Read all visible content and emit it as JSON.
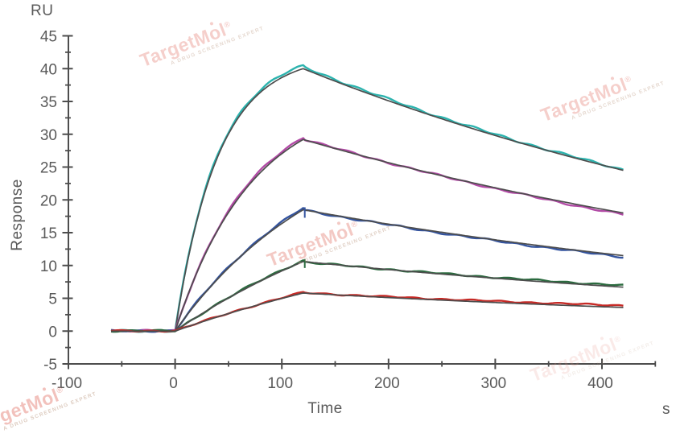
{
  "labels": {
    "y_unit": "RU",
    "y_axis": "Response",
    "x_axis": "Time",
    "x_unit": "s"
  },
  "watermark": {
    "brand_pre": "TargetM",
    "brand_o": "o",
    "brand_post": "l",
    "registered": "®",
    "tagline": "A DRUG SCREENING EXPERT"
  },
  "chart_data": {
    "type": "line",
    "subtype": "spr-sensorgram-with-fit",
    "title": "",
    "xlabel": "Time (s)",
    "ylabel": "Response (RU)",
    "xlim": [
      -100,
      450
    ],
    "ylim": [
      -5,
      45
    ],
    "x_ticks_major": [
      -100,
      0,
      100,
      200,
      300,
      400
    ],
    "x_ticks_minor": [
      -50,
      50,
      150,
      250,
      350,
      450
    ],
    "y_ticks_major": [
      45,
      40,
      35,
      30,
      25,
      20,
      15,
      10,
      5,
      0,
      -5
    ],
    "y_ticks_minor": [
      42.5,
      37.5,
      32.5,
      27.5,
      22.5,
      17.5,
      12.5,
      7.5,
      2.5,
      -2.5
    ],
    "grid": false,
    "legend": "none",
    "background": "#ffffff",
    "axis_color": "#4d4d4d",
    "text_color": "#5a5a5a",
    "fit_color": "#4d4d4d",
    "phases": {
      "baseline_start_s": -60,
      "association_start_s": 0,
      "association_end_s": 120,
      "dissociation_end_s": 420
    },
    "samples_t": [
      0,
      30,
      60,
      90,
      120,
      180,
      240,
      300,
      360,
      420
    ],
    "series": [
      {
        "name": "curve-1-highest-conc",
        "color_name": "cyan",
        "color": "#2cb3ae",
        "peak_ru": 40.0,
        "end_ru": 24.5,
        "k_assoc": 0.025,
        "noise": 0.12,
        "delta": [
          0.4,
          0.3,
          0.1
        ],
        "spike_len": 0,
        "samples_ru": [
          0,
          22.2,
          32.7,
          37.7,
          40.0,
          36.3,
          32.9,
          29.8,
          27.0,
          24.5
        ]
      },
      {
        "name": "curve-2",
        "color_name": "magenta",
        "color": "#b24ba6",
        "peak_ru": 29.2,
        "end_ru": 18.0,
        "k_assoc": 0.014,
        "noise": 0.1,
        "delta": [
          0.35,
          0.1,
          -0.25
        ],
        "spike_len": 0,
        "samples_ru": [
          0,
          12.3,
          20.4,
          25.7,
          29.2,
          26.5,
          24.1,
          21.9,
          19.8,
          18.0
        ]
      },
      {
        "name": "curve-3",
        "color_name": "blue",
        "color": "#34549f",
        "peak_ru": 18.5,
        "end_ru": 11.5,
        "k_assoc": 0.007,
        "noise": 0.1,
        "delta": [
          0.25,
          -0.05,
          -0.2
        ],
        "spike_len": 10,
        "samples_ru": [
          0,
          6.2,
          11.2,
          15.2,
          18.5,
          16.8,
          15.3,
          13.9,
          12.6,
          11.5
        ]
      },
      {
        "name": "curve-4",
        "color_name": "green",
        "color": "#2b6b3f",
        "peak_ru": 10.6,
        "end_ru": 6.7,
        "k_assoc": 0.004,
        "noise": 0.09,
        "delta": [
          0.15,
          -0.05,
          0.25
        ],
        "spike_len": 8,
        "samples_ru": [
          0,
          3.1,
          5.9,
          8.4,
          10.6,
          9.7,
          8.8,
          8.0,
          7.3,
          6.7
        ]
      },
      {
        "name": "curve-5-lowest-conc",
        "color_name": "red",
        "color": "#c62a26",
        "peak_ru": 5.8,
        "end_ru": 3.6,
        "k_assoc": 0.003,
        "noise": 0.08,
        "delta": [
          0.1,
          0.05,
          0.3
        ],
        "spike_len": 0,
        "samples_ru": [
          0,
          1.7,
          3.2,
          4.5,
          5.8,
          5.3,
          4.8,
          4.4,
          4.0,
          3.6
        ]
      }
    ]
  }
}
